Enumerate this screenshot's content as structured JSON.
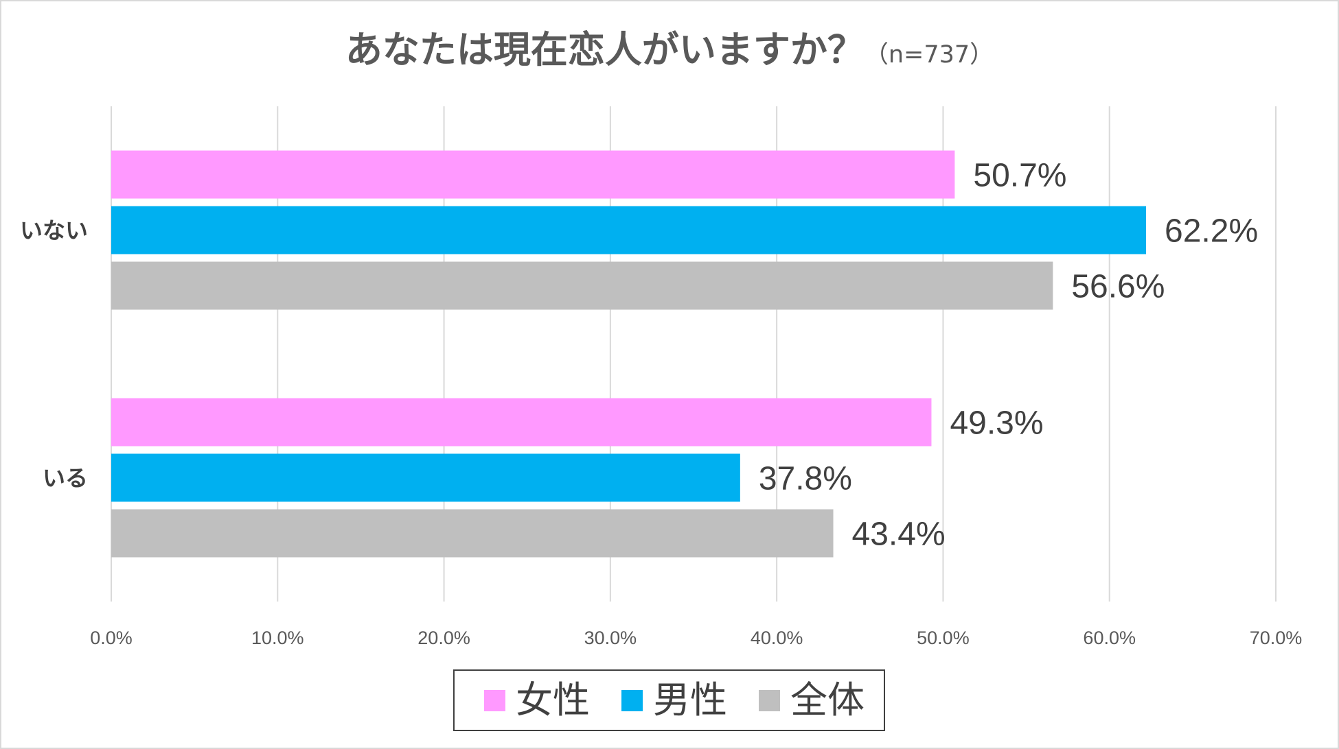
{
  "chart_data": {
    "type": "bar",
    "orientation": "horizontal",
    "title": "あなたは現在恋人がいますか？",
    "title_note": "（n=737）",
    "categories": [
      "いない",
      "いる"
    ],
    "series": [
      {
        "name": "女性",
        "color": "#FF99FF",
        "values": [
          50.7,
          49.3
        ]
      },
      {
        "name": "男性",
        "color": "#00B0F0",
        "values": [
          62.2,
          37.8
        ]
      },
      {
        "name": "全体",
        "color": "#BFBFBF",
        "values": [
          56.6,
          43.4
        ]
      }
    ],
    "value_unit": "%",
    "xlim": [
      0,
      70
    ],
    "x_ticks": [
      0,
      10,
      20,
      30,
      40,
      50,
      60,
      70
    ],
    "x_tick_labels": [
      "0.0%",
      "10.0%",
      "20.0%",
      "30.0%",
      "40.0%",
      "50.0%",
      "60.0%",
      "70.0%"
    ],
    "grid": true,
    "grid_color": "#D9D9D9",
    "data_labels": true,
    "legend": {
      "position": "bottom",
      "boxed": true
    }
  }
}
